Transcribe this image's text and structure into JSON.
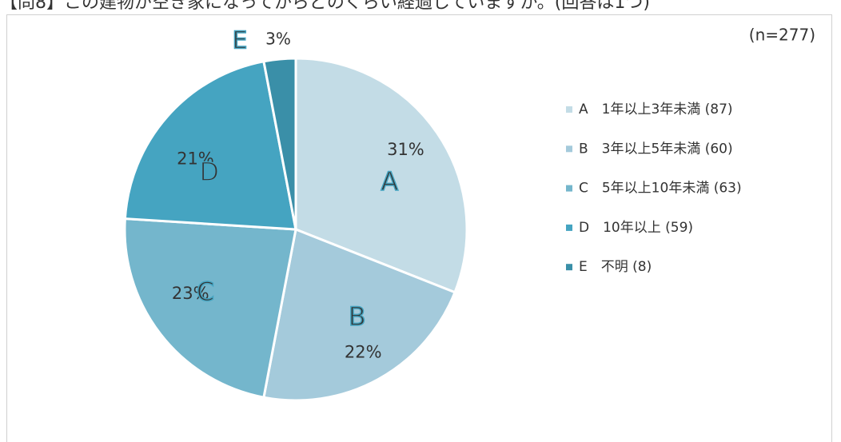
{
  "chart_data": {
    "type": "pie",
    "title": "【問8】この建物が空き家になってからどのくらい経過していますか。(回答は1つ)",
    "annotation": "(n=277)",
    "categories": [
      "A　1年以上3年未満 (87)",
      "B　3年以上5年未満 (60)",
      "C　5年以上10年未満 (63)",
      "D　10年以上 (59)",
      "E　不明 (8)"
    ],
    "slice_letters": [
      "A",
      "B",
      "C",
      "D",
      "E"
    ],
    "values": [
      31,
      22,
      23,
      21,
      3
    ],
    "value_labels": [
      "31%",
      "22%",
      "23%",
      "21%",
      "3%"
    ],
    "colors": [
      "#c3dce6",
      "#a4cadb",
      "#74b6cc",
      "#45a4c1",
      "#3a8fa8"
    ],
    "legend": "right"
  }
}
